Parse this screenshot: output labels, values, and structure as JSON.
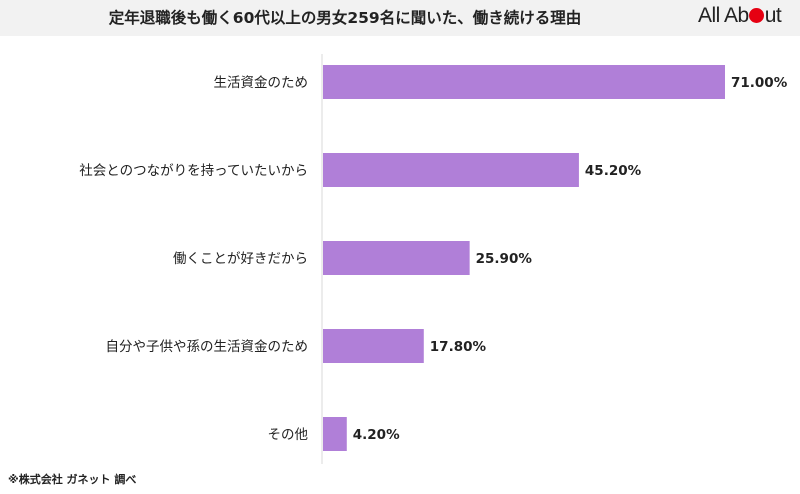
{
  "chart_data": {
    "type": "bar",
    "orientation": "horizontal",
    "title": "定年退職後も働く60代以上の男女259名に聞いた、働き続ける理由",
    "categories": [
      "生活資金のため",
      "社会とのつながりを持っていたいから",
      "働くことが好きだから",
      "自分や子供や孫の生活資金のため",
      "その他"
    ],
    "values": [
      71.0,
      45.2,
      25.9,
      17.8,
      4.2
    ],
    "value_labels": [
      "71.00%",
      "45.20%",
      "25.90%",
      "17.80%",
      "4.20%"
    ],
    "xlim": [
      0,
      71
    ],
    "bar_color": "#b07fd8",
    "grid": false,
    "legend": "none"
  },
  "brand": {
    "logo_text_before": "All Ab",
    "logo_text_after": "ut",
    "dot_color": "#e60012"
  },
  "source_note": "※株式会社 ガネット 調べ"
}
